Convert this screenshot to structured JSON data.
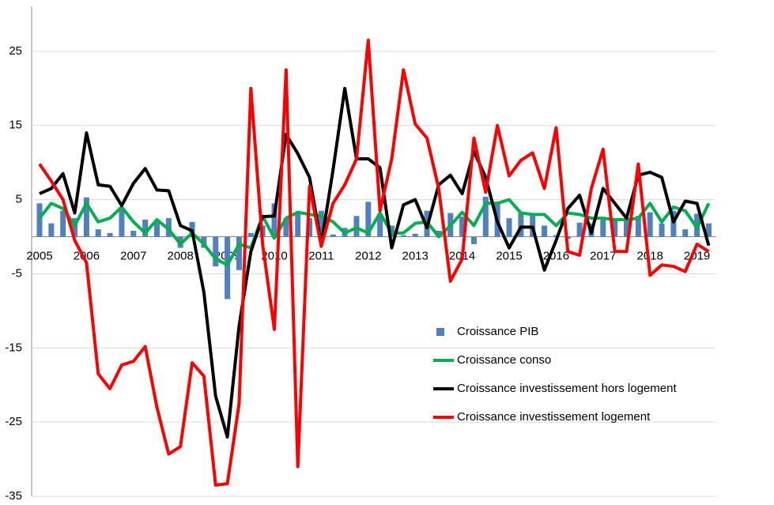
{
  "chart_data": {
    "type": "bar-line",
    "categories": [
      "2005",
      null,
      null,
      null,
      "2006",
      null,
      null,
      null,
      "2007",
      null,
      null,
      null,
      "2008",
      null,
      null,
      null,
      "2009",
      null,
      null,
      null,
      "2010",
      null,
      null,
      null,
      "2011",
      null,
      null,
      null,
      "2012",
      null,
      null,
      null,
      "2013",
      null,
      null,
      null,
      "2014",
      null,
      null,
      null,
      "2015",
      null,
      null,
      null,
      "2016",
      null,
      null,
      null,
      "2017",
      null,
      null,
      null,
      "2018",
      null,
      null,
      null,
      "2019",
      null
    ],
    "series": [
      {
        "name": "Croissance PIB",
        "type": "bar",
        "color": "#4f81bd",
        "values": [
          4.5,
          1.8,
          3.5,
          2.5,
          5.3,
          1,
          0.5,
          3.8,
          0.8,
          2.3,
          2,
          2.5,
          -1.5,
          2,
          -1.5,
          -4,
          -8.4,
          -4.5,
          0.5,
          1.5,
          4.5,
          2.5,
          3.3,
          2.5,
          3.5,
          0.3,
          1.2,
          2.8,
          4.7,
          2.9,
          1.5,
          0.2,
          0.4,
          3.5,
          0.8,
          3.2,
          2.7,
          -1,
          5.4,
          4.7,
          2.5,
          3.2,
          3,
          1.5,
          0.2,
          -0.3,
          1.9,
          1.8,
          2.3,
          2.5,
          2.5,
          2.8,
          3.3,
          1.8,
          3.5,
          1,
          3.1,
          1.8
        ]
      },
      {
        "name": "Croissance conso",
        "type": "line",
        "color": "#00b050",
        "values": [
          2.5,
          4.5,
          3.8,
          1.5,
          4.5,
          2,
          2.5,
          4,
          2,
          0.5,
          2.3,
          1,
          -1,
          0.5,
          -1,
          -3,
          -3.8,
          -1,
          -1.5,
          2.8,
          -0.2,
          2.5,
          3.3,
          3,
          2.8,
          2,
          0.5,
          1.2,
          0.5,
          3.2,
          0.5,
          0.5,
          1.8,
          2,
          0,
          1.5,
          3.3,
          1.5,
          4.5,
          4.5,
          5,
          3.2,
          3,
          3,
          1.5,
          3.2,
          3,
          2.5,
          2.5,
          2.3,
          2.3,
          2.5,
          4.5,
          2,
          4,
          3.5,
          1.2,
          4.5
        ]
      },
      {
        "name": "Croissance investissement hors logement",
        "type": "line",
        "color": "#000000",
        "values": [
          5.8,
          6.5,
          8.5,
          3.2,
          14,
          7,
          6.8,
          4.2,
          7.2,
          9.2,
          6.3,
          6.2,
          1.5,
          0.8,
          -7.5,
          -21.5,
          -27,
          -12,
          -2,
          2.7,
          2.8,
          13.8,
          11.2,
          8,
          -1,
          9,
          20,
          10.5,
          10.5,
          9.3,
          -1.5,
          4.3,
          5,
          1.2,
          7,
          8.3,
          5.8,
          11.5,
          8,
          2,
          -1.5,
          1.3,
          1.3,
          -4.5,
          -0.5,
          3.8,
          5.6,
          0.5,
          6.5,
          4.5,
          2.5,
          8.3,
          8.7,
          8,
          2,
          4.8,
          4.5,
          -1.2
        ]
      },
      {
        "name": "Croissance investissement logement",
        "type": "line",
        "color": "#ff0000",
        "values": [
          9.8,
          7.5,
          5,
          -0.5,
          -3.5,
          -18.5,
          -20.5,
          -17.3,
          -16.8,
          -14.8,
          -23,
          -29.3,
          -28.3,
          -17,
          -18.8,
          -33.5,
          -33.3,
          -22.5,
          20,
          -1,
          -12.5,
          22.5,
          -31,
          6.8,
          -1.3,
          4.5,
          7,
          10.5,
          26.5,
          3.5,
          10.5,
          22.5,
          15.2,
          13.3,
          6.5,
          -6,
          -3,
          13.3,
          6,
          15,
          8.2,
          10.3,
          11.3,
          6.5,
          14.7,
          -2,
          -2.5,
          6.5,
          11.8,
          -2,
          -2,
          9.8,
          -5.2,
          -3.8,
          -4,
          -4.7,
          -1,
          -2
        ]
      }
    ],
    "ylim": [
      -35,
      30
    ],
    "yticks": [
      -35,
      -25,
      -15,
      -5,
      5,
      15,
      25
    ],
    "grid": true,
    "legend": "right"
  }
}
